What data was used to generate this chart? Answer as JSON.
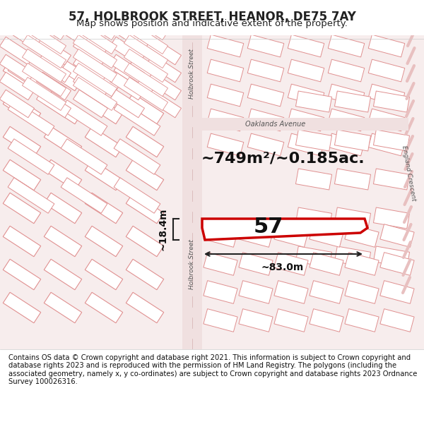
{
  "title": "57, HOLBROOK STREET, HEANOR, DE75 7AY",
  "subtitle": "Map shows position and indicative extent of the property.",
  "area_text": "~749m²/~0.185ac.",
  "number": "57",
  "dim_width": "~83.0m",
  "dim_height": "~18.4m",
  "street_label": "Holbrook Street",
  "street_label2": "Holbrook Street",
  "oaklands_label": "Oaklands Avenue",
  "england_crescent": "England Crescent",
  "footer": "Contains OS data © Crown copyright and database right 2021. This information is subject to Crown copyright and database rights 2023 and is reproduced with the permission of HM Land Registry. The polygons (including the associated geometry, namely x, y co-ordinates) are subject to Crown copyright and database rights 2023 Ordnance Survey 100026316.",
  "bg_color": "#f5f0f0",
  "map_bg": "#ffffff",
  "road_color": "#ffffff",
  "line_color": "#e8a0a0",
  "highlight_color": "#cc0000",
  "title_color": "#222222",
  "footer_color": "#111111"
}
